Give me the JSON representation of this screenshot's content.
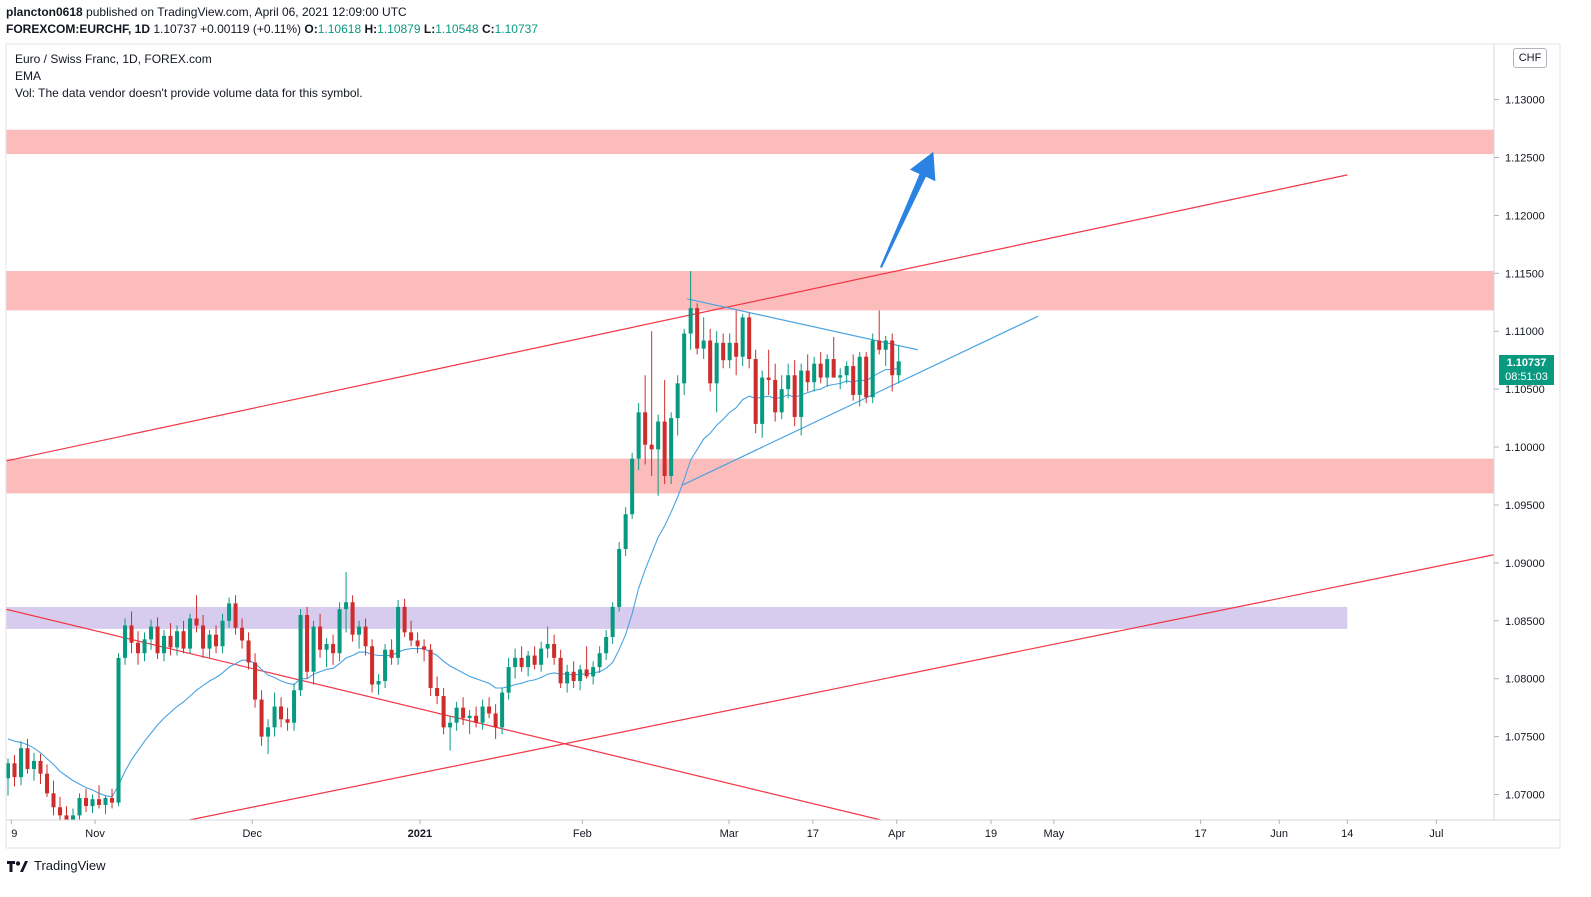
{
  "header": {
    "author": "plancton0618",
    "published": "published on TradingView.com, April 06, 2021 12:09:00 UTC",
    "symbol_line": "FOREXCOM:EURCHF, 1D",
    "last": "1.10737",
    "change": "+0.00119 (+0.11%)",
    "o_label": "O:",
    "o_value": "1.10618",
    "h_label": "H:",
    "h_value": "1.10879",
    "l_label": "L:",
    "l_value": "1.10548",
    "c_label": "C:",
    "c_value": "1.10737"
  },
  "legend": {
    "title": "Euro / Swiss Franc, 1D, FOREX.com",
    "ema": "EMA",
    "vol": "Vol: The data vendor doesn't provide volume data for this symbol."
  },
  "currency_badge": "CHF",
  "price_tag": {
    "price": "1.10737",
    "countdown": "08:51:03"
  },
  "footer": {
    "brand": "TradingView"
  },
  "colors": {
    "up": "#089981",
    "down": "#cf2c2c",
    "zone_red": "#fdb8b8",
    "zone_purple": "#d5c9ec",
    "trend_red": "#f23645",
    "ema_blue": "#4aa3e2",
    "arrow": "#2a83e2"
  },
  "chart_data": {
    "type": "candlestick",
    "symbol": "EURCHF",
    "interval": "1D",
    "y_axis_ticks": [
      "1.13000",
      "1.12500",
      "1.12000",
      "1.11500",
      "1.11000",
      "1.10500",
      "1.10000",
      "1.09500",
      "1.09000",
      "1.08500",
      "1.08000",
      "1.07500",
      "1.07000"
    ],
    "y_tick_values": [
      1.13,
      1.125,
      1.12,
      1.115,
      1.11,
      1.105,
      1.1,
      1.095,
      1.09,
      1.085,
      1.08,
      1.075,
      1.07
    ],
    "ylim": [
      1.0678,
      1.1348
    ],
    "x_axis_labels": [
      {
        "label": "9",
        "day": 0
      },
      {
        "label": "Nov",
        "day": 16
      },
      {
        "label": "Dec",
        "day": 46
      },
      {
        "label": "2021",
        "day": 78
      },
      {
        "label": "Feb",
        "day": 109
      },
      {
        "label": "Mar",
        "day": 137
      },
      {
        "label": "17",
        "day": 153
      },
      {
        "label": "Apr",
        "day": 169
      },
      {
        "label": "19",
        "day": 187
      },
      {
        "label": "May",
        "day": 199
      },
      {
        "label": "17",
        "day": 227
      },
      {
        "label": "Jun",
        "day": 242
      },
      {
        "label": "14",
        "day": 255
      },
      {
        "label": "Jul",
        "day": 272
      }
    ],
    "xlim_days": [
      -1,
      283
    ],
    "candles": [
      {
        "o": 1.0714,
        "h": 1.0731,
        "l": 1.0699,
        "c": 1.0727
      },
      {
        "o": 1.0727,
        "h": 1.0734,
        "l": 1.0707,
        "c": 1.0715
      },
      {
        "o": 1.0715,
        "h": 1.0746,
        "l": 1.0708,
        "c": 1.074
      },
      {
        "o": 1.074,
        "h": 1.0748,
        "l": 1.0718,
        "c": 1.0722
      },
      {
        "o": 1.0722,
        "h": 1.0736,
        "l": 1.0712,
        "c": 1.0729
      },
      {
        "o": 1.0729,
        "h": 1.0735,
        "l": 1.0709,
        "c": 1.0718
      },
      {
        "o": 1.0718,
        "h": 1.0726,
        "l": 1.0698,
        "c": 1.0701
      },
      {
        "o": 1.0701,
        "h": 1.0712,
        "l": 1.0682,
        "c": 1.0689
      },
      {
        "o": 1.0689,
        "h": 1.0698,
        "l": 1.0676,
        "c": 1.0682
      },
      {
        "o": 1.0682,
        "h": 1.069,
        "l": 1.0672,
        "c": 1.0678
      },
      {
        "o": 1.0678,
        "h": 1.0688,
        "l": 1.067,
        "c": 1.0682
      },
      {
        "o": 1.0682,
        "h": 1.0701,
        "l": 1.0674,
        "c": 1.0697
      },
      {
        "o": 1.0697,
        "h": 1.0705,
        "l": 1.0685,
        "c": 1.069
      },
      {
        "o": 1.069,
        "h": 1.07,
        "l": 1.0684,
        "c": 1.0696
      },
      {
        "o": 1.0696,
        "h": 1.0708,
        "l": 1.0688,
        "c": 1.0691
      },
      {
        "o": 1.0691,
        "h": 1.0699,
        "l": 1.0683,
        "c": 1.0697
      },
      {
        "o": 1.0697,
        "h": 1.0705,
        "l": 1.0688,
        "c": 1.0693
      },
      {
        "o": 1.0693,
        "h": 1.0822,
        "l": 1.069,
        "c": 1.0818
      },
      {
        "o": 1.0818,
        "h": 1.0852,
        "l": 1.0812,
        "c": 1.0846
      },
      {
        "o": 1.0846,
        "h": 1.0858,
        "l": 1.0822,
        "c": 1.0831
      },
      {
        "o": 1.0831,
        "h": 1.0841,
        "l": 1.0812,
        "c": 1.0822
      },
      {
        "o": 1.0822,
        "h": 1.084,
        "l": 1.0815,
        "c": 1.0834
      },
      {
        "o": 1.0834,
        "h": 1.0851,
        "l": 1.0825,
        "c": 1.0845
      },
      {
        "o": 1.0845,
        "h": 1.0853,
        "l": 1.0817,
        "c": 1.0822
      },
      {
        "o": 1.0822,
        "h": 1.0842,
        "l": 1.0815,
        "c": 1.0837
      },
      {
        "o": 1.0837,
        "h": 1.0848,
        "l": 1.082,
        "c": 1.0827
      },
      {
        "o": 1.0827,
        "h": 1.0846,
        "l": 1.082,
        "c": 1.0841
      },
      {
        "o": 1.0841,
        "h": 1.085,
        "l": 1.0822,
        "c": 1.0826
      },
      {
        "o": 1.0826,
        "h": 1.0856,
        "l": 1.0822,
        "c": 1.0852
      },
      {
        "o": 1.0852,
        "h": 1.0872,
        "l": 1.084,
        "c": 1.0846
      },
      {
        "o": 1.0846,
        "h": 1.0855,
        "l": 1.0818,
        "c": 1.0826
      },
      {
        "o": 1.0826,
        "h": 1.0842,
        "l": 1.0818,
        "c": 1.0838
      },
      {
        "o": 1.0838,
        "h": 1.0846,
        "l": 1.0822,
        "c": 1.0828
      },
      {
        "o": 1.0828,
        "h": 1.0856,
        "l": 1.0822,
        "c": 1.085
      },
      {
        "o": 1.085,
        "h": 1.087,
        "l": 1.0844,
        "c": 1.0865
      },
      {
        "o": 1.0865,
        "h": 1.0872,
        "l": 1.0838,
        "c": 1.0844
      },
      {
        "o": 1.0844,
        "h": 1.0852,
        "l": 1.0826,
        "c": 1.0833
      },
      {
        "o": 1.0833,
        "h": 1.084,
        "l": 1.0808,
        "c": 1.0814
      },
      {
        "o": 1.0814,
        "h": 1.0822,
        "l": 1.0775,
        "c": 1.0782
      },
      {
        "o": 1.0782,
        "h": 1.079,
        "l": 1.0742,
        "c": 1.075
      },
      {
        "o": 1.075,
        "h": 1.0765,
        "l": 1.0735,
        "c": 1.0758
      },
      {
        "o": 1.0758,
        "h": 1.0788,
        "l": 1.075,
        "c": 1.0776
      },
      {
        "o": 1.0776,
        "h": 1.0784,
        "l": 1.0758,
        "c": 1.0765
      },
      {
        "o": 1.0765,
        "h": 1.0775,
        "l": 1.0755,
        "c": 1.0762
      },
      {
        "o": 1.0762,
        "h": 1.0796,
        "l": 1.0755,
        "c": 1.079
      },
      {
        "o": 1.079,
        "h": 1.086,
        "l": 1.0785,
        "c": 1.0855
      },
      {
        "o": 1.0855,
        "h": 1.0862,
        "l": 1.08,
        "c": 1.0806
      },
      {
        "o": 1.0806,
        "h": 1.085,
        "l": 1.0795,
        "c": 1.0845
      },
      {
        "o": 1.0845,
        "h": 1.0856,
        "l": 1.0818,
        "c": 1.0825
      },
      {
        "o": 1.0825,
        "h": 1.0835,
        "l": 1.081,
        "c": 1.083
      },
      {
        "o": 1.083,
        "h": 1.0838,
        "l": 1.0812,
        "c": 1.0822
      },
      {
        "o": 1.0822,
        "h": 1.0866,
        "l": 1.0815,
        "c": 1.086
      },
      {
        "o": 1.086,
        "h": 1.0892,
        "l": 1.084,
        "c": 1.0866
      },
      {
        "o": 1.0866,
        "h": 1.0872,
        "l": 1.0832,
        "c": 1.0838
      },
      {
        "o": 1.0838,
        "h": 1.085,
        "l": 1.0826,
        "c": 1.0845
      },
      {
        "o": 1.0845,
        "h": 1.0852,
        "l": 1.082,
        "c": 1.0828
      },
      {
        "o": 1.0828,
        "h": 1.0834,
        "l": 1.0788,
        "c": 1.0795
      },
      {
        "o": 1.0795,
        "h": 1.0804,
        "l": 1.0786,
        "c": 1.0798
      },
      {
        "o": 1.0798,
        "h": 1.083,
        "l": 1.0792,
        "c": 1.0825
      },
      {
        "o": 1.0825,
        "h": 1.0834,
        "l": 1.0812,
        "c": 1.0818
      },
      {
        "o": 1.0818,
        "h": 1.0868,
        "l": 1.0812,
        "c": 1.0862
      },
      {
        "o": 1.0862,
        "h": 1.0869,
        "l": 1.0836,
        "c": 1.084
      },
      {
        "o": 1.084,
        "h": 1.085,
        "l": 1.0828,
        "c": 1.0833
      },
      {
        "o": 1.0833,
        "h": 1.084,
        "l": 1.0822,
        "c": 1.0828
      },
      {
        "o": 1.0828,
        "h": 1.0834,
        "l": 1.0815,
        "c": 1.0825
      },
      {
        "o": 1.0825,
        "h": 1.083,
        "l": 1.0785,
        "c": 1.0792
      },
      {
        "o": 1.0792,
        "h": 1.0802,
        "l": 1.0778,
        "c": 1.0785
      },
      {
        "o": 1.0785,
        "h": 1.0792,
        "l": 1.0752,
        "c": 1.0758
      },
      {
        "o": 1.0758,
        "h": 1.0768,
        "l": 1.0738,
        "c": 1.0762
      },
      {
        "o": 1.0762,
        "h": 1.078,
        "l": 1.0755,
        "c": 1.0775
      },
      {
        "o": 1.0775,
        "h": 1.0784,
        "l": 1.076,
        "c": 1.0766
      },
      {
        "o": 1.0766,
        "h": 1.0773,
        "l": 1.0752,
        "c": 1.0768
      },
      {
        "o": 1.0768,
        "h": 1.0776,
        "l": 1.0758,
        "c": 1.0762
      },
      {
        "o": 1.0762,
        "h": 1.0782,
        "l": 1.0756,
        "c": 1.0776
      },
      {
        "o": 1.0776,
        "h": 1.0784,
        "l": 1.0766,
        "c": 1.077
      },
      {
        "o": 1.077,
        "h": 1.0778,
        "l": 1.0748,
        "c": 1.0758
      },
      {
        "o": 1.0758,
        "h": 1.0792,
        "l": 1.0752,
        "c": 1.0788
      },
      {
        "o": 1.0788,
        "h": 1.0818,
        "l": 1.0782,
        "c": 1.081
      },
      {
        "o": 1.081,
        "h": 1.0826,
        "l": 1.08,
        "c": 1.0818
      },
      {
        "o": 1.0818,
        "h": 1.0828,
        "l": 1.0806,
        "c": 1.081
      },
      {
        "o": 1.081,
        "h": 1.0824,
        "l": 1.0802,
        "c": 1.082
      },
      {
        "o": 1.082,
        "h": 1.0828,
        "l": 1.0808,
        "c": 1.0812
      },
      {
        "o": 1.0812,
        "h": 1.0832,
        "l": 1.0806,
        "c": 1.0826
      },
      {
        "o": 1.0826,
        "h": 1.0845,
        "l": 1.0818,
        "c": 1.083
      },
      {
        "o": 1.083,
        "h": 1.0838,
        "l": 1.0812,
        "c": 1.0818
      },
      {
        "o": 1.0818,
        "h": 1.0825,
        "l": 1.0792,
        "c": 1.0796
      },
      {
        "o": 1.0796,
        "h": 1.0812,
        "l": 1.0788,
        "c": 1.0806
      },
      {
        "o": 1.0806,
        "h": 1.0815,
        "l": 1.0792,
        "c": 1.0798
      },
      {
        "o": 1.0798,
        "h": 1.0812,
        "l": 1.079,
        "c": 1.0808
      },
      {
        "o": 1.0808,
        "h": 1.0828,
        "l": 1.08,
        "c": 1.0802
      },
      {
        "o": 1.0802,
        "h": 1.0815,
        "l": 1.0795,
        "c": 1.081
      },
      {
        "o": 1.081,
        "h": 1.0828,
        "l": 1.0805,
        "c": 1.0822
      },
      {
        "o": 1.0822,
        "h": 1.0842,
        "l": 1.0816,
        "c": 1.0836
      },
      {
        "o": 1.0836,
        "h": 1.0866,
        "l": 1.083,
        "c": 1.0862
      },
      {
        "o": 1.0862,
        "h": 1.0918,
        "l": 1.0858,
        "c": 1.0912
      },
      {
        "o": 1.0912,
        "h": 1.0948,
        "l": 1.0906,
        "c": 1.0942
      },
      {
        "o": 1.0942,
        "h": 1.0995,
        "l": 1.0938,
        "c": 1.099
      },
      {
        "o": 1.099,
        "h": 1.1038,
        "l": 1.098,
        "c": 1.103
      },
      {
        "o": 1.103,
        "h": 1.1062,
        "l": 1.0985,
        "c": 1.1002
      },
      {
        "o": 1.1002,
        "h": 1.11,
        "l": 1.0975,
        "c": 1.0998
      },
      {
        "o": 1.0998,
        "h": 1.1028,
        "l": 1.0958,
        "c": 1.1022
      },
      {
        "o": 1.1022,
        "h": 1.1058,
        "l": 1.0968,
        "c": 1.0975
      },
      {
        "o": 1.0975,
        "h": 1.103,
        "l": 1.0968,
        "c": 1.1025
      },
      {
        "o": 1.1025,
        "h": 1.1062,
        "l": 1.101,
        "c": 1.1055
      },
      {
        "o": 1.1055,
        "h": 1.1102,
        "l": 1.1045,
        "c": 1.1098
      },
      {
        "o": 1.1098,
        "h": 1.1152,
        "l": 1.1084,
        "c": 1.112
      },
      {
        "o": 1.112,
        "h": 1.1124,
        "l": 1.108,
        "c": 1.1085
      },
      {
        "o": 1.1085,
        "h": 1.1112,
        "l": 1.1076,
        "c": 1.1092
      },
      {
        "o": 1.1092,
        "h": 1.1102,
        "l": 1.1048,
        "c": 1.1055
      },
      {
        "o": 1.1055,
        "h": 1.11,
        "l": 1.103,
        "c": 1.109
      },
      {
        "o": 1.109,
        "h": 1.1098,
        "l": 1.1068,
        "c": 1.1075
      },
      {
        "o": 1.1075,
        "h": 1.1098,
        "l": 1.1068,
        "c": 1.109
      },
      {
        "o": 1.109,
        "h": 1.1118,
        "l": 1.1062,
        "c": 1.1078
      },
      {
        "o": 1.1078,
        "h": 1.1115,
        "l": 1.107,
        "c": 1.1112
      },
      {
        "o": 1.1112,
        "h": 1.1116,
        "l": 1.1068,
        "c": 1.1076
      },
      {
        "o": 1.1076,
        "h": 1.1084,
        "l": 1.1012,
        "c": 1.102
      },
      {
        "o": 1.102,
        "h": 1.1066,
        "l": 1.1008,
        "c": 1.106
      },
      {
        "o": 1.106,
        "h": 1.1084,
        "l": 1.1045,
        "c": 1.1058
      },
      {
        "o": 1.1058,
        "h": 1.1072,
        "l": 1.1022,
        "c": 1.103
      },
      {
        "o": 1.103,
        "h": 1.1062,
        "l": 1.1024,
        "c": 1.105
      },
      {
        "o": 1.105,
        "h": 1.1072,
        "l": 1.1042,
        "c": 1.1062
      },
      {
        "o": 1.1062,
        "h": 1.1075,
        "l": 1.1018,
        "c": 1.1026
      },
      {
        "o": 1.1026,
        "h": 1.1072,
        "l": 1.101,
        "c": 1.1066
      },
      {
        "o": 1.1066,
        "h": 1.108,
        "l": 1.1048,
        "c": 1.1056
      },
      {
        "o": 1.1056,
        "h": 1.1078,
        "l": 1.1048,
        "c": 1.1072
      },
      {
        "o": 1.1072,
        "h": 1.1082,
        "l": 1.1055,
        "c": 1.106
      },
      {
        "o": 1.106,
        "h": 1.108,
        "l": 1.1052,
        "c": 1.1076
      },
      {
        "o": 1.1076,
        "h": 1.1095,
        "l": 1.1062,
        "c": 1.106
      },
      {
        "o": 1.106,
        "h": 1.1068,
        "l": 1.105,
        "c": 1.1062
      },
      {
        "o": 1.1062,
        "h": 1.1074,
        "l": 1.1055,
        "c": 1.107
      },
      {
        "o": 1.107,
        "h": 1.108,
        "l": 1.104,
        "c": 1.1045
      },
      {
        "o": 1.1045,
        "h": 1.1082,
        "l": 1.1035,
        "c": 1.1078
      },
      {
        "o": 1.1078,
        "h": 1.1082,
        "l": 1.1038,
        "c": 1.1043
      },
      {
        "o": 1.1043,
        "h": 1.1098,
        "l": 1.1038,
        "c": 1.1092
      },
      {
        "o": 1.1092,
        "h": 1.1118,
        "l": 1.108,
        "c": 1.1084
      },
      {
        "o": 1.1084,
        "h": 1.1096,
        "l": 1.107,
        "c": 1.1092
      },
      {
        "o": 1.1092,
        "h": 1.1098,
        "l": 1.1048,
        "c": 1.1062
      },
      {
        "o": 1.1062,
        "h": 1.1088,
        "l": 1.1055,
        "c": 1.1074
      }
    ],
    "ema": [
      1.0748,
      1.0746,
      1.0745,
      1.0743,
      1.074,
      1.0736,
      1.0731,
      1.0726,
      1.072,
      1.0716,
      1.0712,
      1.0709,
      1.0706,
      1.0704,
      1.0701,
      1.0699,
      1.0698,
      1.0708,
      1.072,
      1.073,
      1.0738,
      1.0746,
      1.0753,
      1.076,
      1.0766,
      1.0771,
      1.0776,
      1.078,
      1.0785,
      1.079,
      1.0794,
      1.0798,
      1.0801,
      1.0805,
      1.081,
      1.0813,
      1.0816,
      1.0816,
      1.0813,
      1.0808,
      1.0803,
      1.0801,
      1.0798,
      1.0796,
      1.0795,
      1.08,
      1.08,
      1.0804,
      1.0806,
      1.0808,
      1.0809,
      1.0813,
      1.0818,
      1.082,
      1.0823,
      1.0823,
      1.0821,
      1.082,
      1.082,
      1.082,
      1.0823,
      1.0825,
      1.0826,
      1.0826,
      1.0826,
      1.0823,
      1.082,
      1.0815,
      1.0811,
      1.0808,
      1.0805,
      1.0802,
      1.08,
      1.0798,
      1.0796,
      1.0792,
      1.0792,
      1.0793,
      1.0795,
      1.0796,
      1.0798,
      1.0799,
      1.0801,
      1.0804,
      1.0805,
      1.0804,
      1.0804,
      1.0803,
      1.0804,
      1.0804,
      1.0805,
      1.0806,
      1.0809,
      1.0814,
      1.0825,
      1.0838,
      1.0856,
      1.0878,
      1.0894,
      1.0908,
      1.0922,
      1.0932,
      1.0944,
      1.0957,
      1.0972,
      1.0989,
      1.0998,
      1.1007,
      1.1012,
      1.1019,
      1.1024,
      1.103,
      1.1034,
      1.1041,
      1.1044,
      1.1042,
      1.1043,
      1.1044,
      1.1042,
      1.1043,
      1.1045,
      1.1043,
      1.1045,
      1.1047,
      1.1049,
      1.105,
      1.1053,
      1.1054,
      1.1055,
      1.1057,
      1.1056,
      1.1058,
      1.1057,
      1.1061,
      1.1064,
      1.1067,
      1.1067,
      1.1068
    ],
    "zones": [
      {
        "label": "resistance-top",
        "top": 1.1274,
        "bottom": 1.1253,
        "end_day": null
      },
      {
        "label": "resistance-mid",
        "top": 1.1152,
        "bottom": 1.1118,
        "end_day": null
      },
      {
        "label": "support",
        "top": 1.099,
        "bottom": 1.096,
        "end_day": null
      },
      {
        "label": "purple-zone",
        "top": 1.0862,
        "bottom": 1.0843,
        "end_day": 255
      }
    ],
    "trendlines": [
      {
        "color": "red",
        "from": {
          "day": -1,
          "price": 1.0988
        },
        "to": {
          "day": 255,
          "price": 1.1235
        }
      },
      {
        "color": "red",
        "from": {
          "day": -1,
          "price": 1.086
        },
        "to": {
          "day": 166,
          "price": 1.0678
        }
      },
      {
        "color": "red",
        "from": {
          "day": 34,
          "price": 1.0678
        },
        "to": {
          "day": 283,
          "price": 1.0907
        }
      },
      {
        "color": "blue",
        "from": {
          "day": 128,
          "price": 1.0967
        },
        "to": {
          "day": 196,
          "price": 1.1113
        }
      },
      {
        "color": "blue",
        "from": {
          "day": 129,
          "price": 1.1128
        },
        "to": {
          "day": 173,
          "price": 1.1084
        }
      }
    ],
    "arrow": {
      "from": {
        "day": 166,
        "price": 1.1155
      },
      "to": {
        "day": 176,
        "price": 1.1255
      }
    }
  }
}
